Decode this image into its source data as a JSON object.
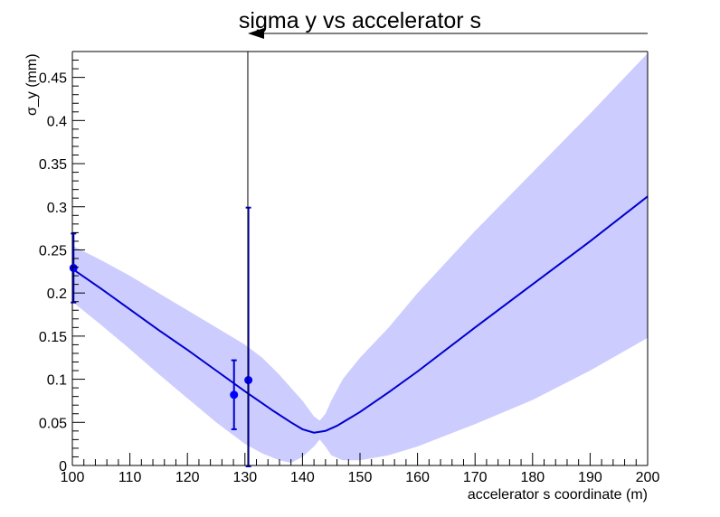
{
  "chart_data": {
    "type": "line",
    "title": "sigma y vs accelerator s",
    "xlabel": "accelerator s coordinate (m)",
    "ylabel": "σ_y (mm)",
    "xlim": [
      100,
      200
    ],
    "ylim": [
      0,
      0.48
    ],
    "grid": false,
    "xticks": [
      100,
      110,
      120,
      130,
      140,
      150,
      160,
      170,
      180,
      190,
      200
    ],
    "yticks": [
      0,
      0.05,
      0.1,
      0.15,
      0.2,
      0.25,
      0.3,
      0.35,
      0.4,
      0.45
    ],
    "colors": {
      "line": "#0000cc",
      "band": "#ccccff",
      "points": "#0000ff",
      "axis": "#000000"
    },
    "fit_line": {
      "x": [
        100,
        105,
        110,
        115,
        120,
        125,
        130,
        135,
        138,
        140,
        142,
        144,
        146,
        150,
        155,
        160,
        170,
        180,
        190,
        200
      ],
      "y": [
        0.228,
        0.205,
        0.181,
        0.157,
        0.134,
        0.11,
        0.086,
        0.063,
        0.05,
        0.042,
        0.038,
        0.04,
        0.046,
        0.062,
        0.085,
        0.109,
        0.16,
        0.21,
        0.26,
        0.312
      ]
    },
    "uncertainty_band": {
      "x": [
        100,
        105,
        110,
        115,
        120,
        125,
        130,
        133,
        136,
        138,
        140,
        142,
        143,
        144,
        145,
        147,
        150,
        155,
        160,
        170,
        180,
        190,
        200
      ],
      "upper": [
        0.255,
        0.238,
        0.22,
        0.2,
        0.18,
        0.16,
        0.14,
        0.125,
        0.105,
        0.09,
        0.075,
        0.057,
        0.052,
        0.06,
        0.075,
        0.1,
        0.125,
        0.16,
        0.2,
        0.272,
        0.34,
        0.408,
        0.478
      ],
      "lower": [
        0.19,
        0.163,
        0.135,
        0.106,
        0.078,
        0.05,
        0.025,
        0.014,
        0.006,
        0.003,
        0.01,
        0.022,
        0.03,
        0.022,
        0.012,
        0.006,
        0.006,
        0.012,
        0.022,
        0.048,
        0.076,
        0.11,
        0.148
      ]
    },
    "points": [
      {
        "x": 100.2,
        "y": 0.229,
        "yerr_low": 0.04,
        "yerr_high": 0.04
      },
      {
        "x": 128.1,
        "y": 0.082,
        "yerr_low": 0.04,
        "yerr_high": 0.04
      },
      {
        "x": 130.6,
        "y": 0.099,
        "yerr_low": 0.1,
        "yerr_high": 0.2
      }
    ],
    "marker_line_x": 130.5
  }
}
